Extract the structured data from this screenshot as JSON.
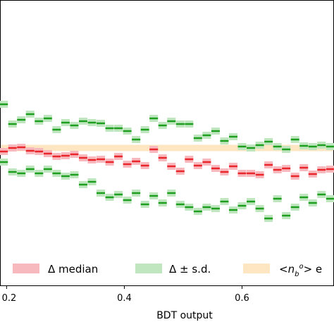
{
  "chart_data": {
    "type": "scatter",
    "xlabel": "BDT output",
    "x_ticks": [
      "0.2",
      "0.4",
      "0.6"
    ],
    "xlim": [
      0.19,
      0.755
    ],
    "ylim": [
      -1.0,
      1.0
    ],
    "band": {
      "name": "< n_b^o > e",
      "y": 0.0,
      "half_width": 0.045,
      "color": "#fde6c1"
    },
    "series": [
      {
        "name": "Δ median",
        "line_color": "#e8262b",
        "band_color": "#f7b9bd",
        "x": [
          0.195,
          0.21,
          0.225,
          0.24,
          0.255,
          0.27,
          0.285,
          0.3,
          0.315,
          0.33,
          0.345,
          0.36,
          0.375,
          0.39,
          0.405,
          0.42,
          0.435,
          0.45,
          0.465,
          0.48,
          0.495,
          0.51,
          0.525,
          0.54,
          0.555,
          0.57,
          0.585,
          0.6,
          0.615,
          0.63,
          0.645,
          0.66,
          0.675,
          0.69,
          0.705,
          0.72,
          0.735,
          0.75
        ],
        "y": [
          -0.05,
          0.0,
          0.01,
          -0.04,
          -0.05,
          -0.08,
          -0.12,
          -0.11,
          -0.09,
          -0.14,
          -0.17,
          -0.16,
          -0.2,
          -0.12,
          -0.23,
          -0.19,
          -0.25,
          -0.02,
          -0.14,
          -0.26,
          -0.33,
          -0.16,
          -0.25,
          -0.2,
          -0.29,
          -0.34,
          -0.26,
          -0.36,
          -0.36,
          -0.38,
          -0.24,
          -0.31,
          -0.29,
          -0.4,
          -0.28,
          -0.37,
          -0.31,
          -0.3
        ]
      },
      {
        "name": "Δ ± s.d. (upper)",
        "line_color": "#1e9e1e",
        "band_color": "#bfe6bf",
        "x": [
          0.195,
          0.21,
          0.225,
          0.24,
          0.255,
          0.27,
          0.285,
          0.3,
          0.315,
          0.33,
          0.345,
          0.36,
          0.375,
          0.39,
          0.405,
          0.42,
          0.435,
          0.45,
          0.465,
          0.48,
          0.495,
          0.51,
          0.525,
          0.54,
          0.555,
          0.57,
          0.585,
          0.6,
          0.615,
          0.63,
          0.645,
          0.66,
          0.675,
          0.69,
          0.705,
          0.72,
          0.735,
          0.75
        ],
        "y": [
          0.62,
          0.34,
          0.4,
          0.48,
          0.38,
          0.42,
          0.26,
          0.36,
          0.32,
          0.38,
          0.36,
          0.35,
          0.28,
          0.28,
          0.24,
          0.12,
          0.26,
          0.42,
          0.32,
          0.38,
          0.34,
          0.34,
          0.14,
          0.18,
          0.24,
          0.1,
          0.16,
          0.02,
          0.0,
          0.04,
          0.09,
          0.02,
          -0.02,
          0.12,
          0.03,
          0.02,
          0.04,
          0.02
        ]
      },
      {
        "name": "Δ ± s.d. (lower)",
        "line_color": "#1e9e1e",
        "band_color": "#bfe6bf",
        "x": [
          0.195,
          0.21,
          0.225,
          0.24,
          0.255,
          0.27,
          0.285,
          0.3,
          0.315,
          0.33,
          0.345,
          0.36,
          0.375,
          0.39,
          0.405,
          0.42,
          0.435,
          0.45,
          0.465,
          0.48,
          0.495,
          0.51,
          0.525,
          0.54,
          0.555,
          0.57,
          0.585,
          0.6,
          0.615,
          0.63,
          0.645,
          0.66,
          0.675,
          0.69,
          0.705,
          0.72,
          0.735,
          0.75
        ],
        "y": [
          -0.2,
          -0.34,
          -0.36,
          -0.3,
          -0.36,
          -0.3,
          -0.36,
          -0.4,
          -0.38,
          -0.52,
          -0.48,
          -0.64,
          -0.7,
          -0.66,
          -0.74,
          -0.64,
          -0.8,
          -0.68,
          -0.78,
          -0.64,
          -0.8,
          -0.84,
          -0.9,
          -0.84,
          -0.86,
          -0.76,
          -0.88,
          -0.82,
          -0.76,
          -0.86,
          -1.0,
          -0.72,
          -0.96,
          -0.84,
          -0.7,
          -0.78,
          -0.66,
          -0.72
        ]
      }
    ],
    "legend": [
      {
        "label": "Δ median",
        "color": "#f7b9bd"
      },
      {
        "label": "Δ ± s.d.",
        "color": "#bfe6bf"
      },
      {
        "label": "< n_b^o > e",
        "color": "#fde6c1"
      }
    ],
    "legend_position": "lower-center",
    "grid": false
  }
}
